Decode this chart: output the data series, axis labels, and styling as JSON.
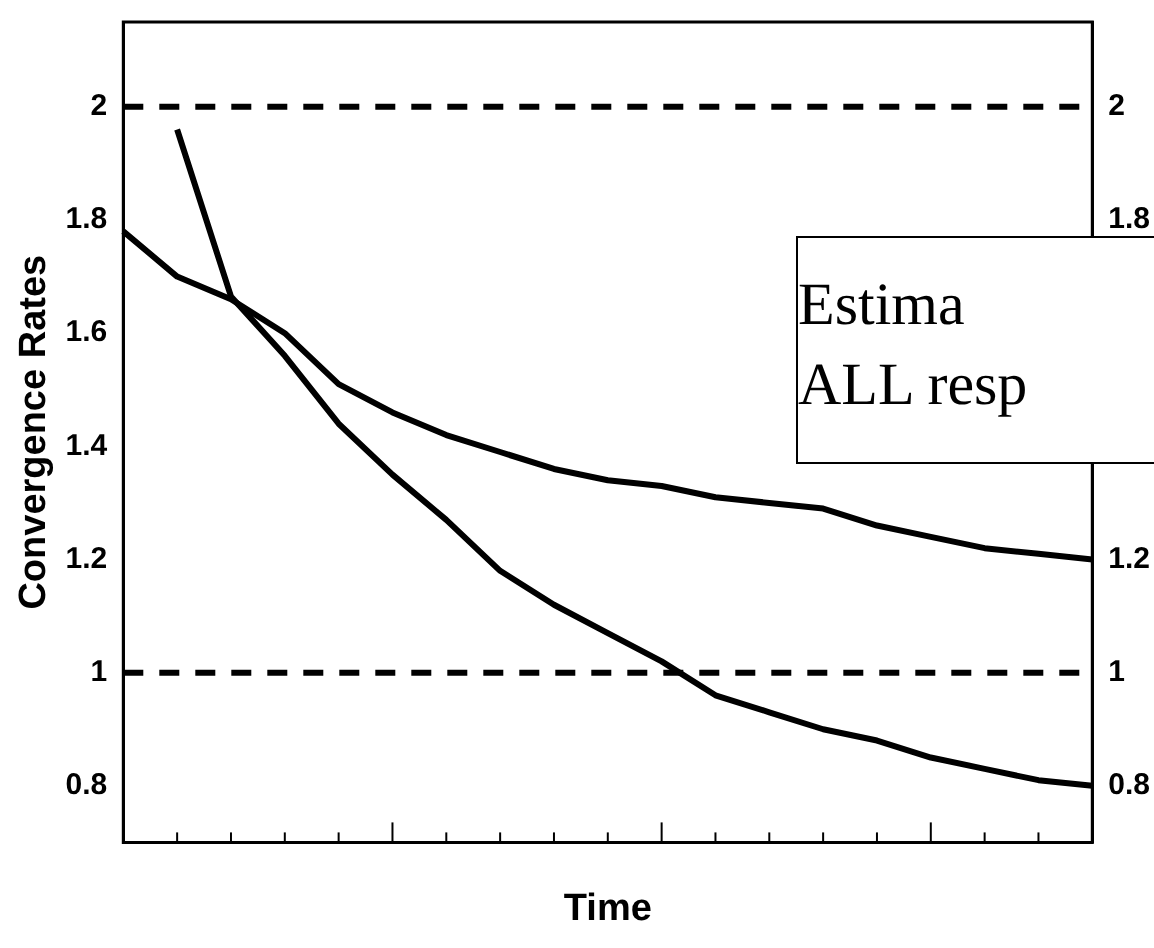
{
  "chart_data": {
    "type": "line",
    "xlabel": "Time",
    "ylabel": "Convergence Rates",
    "categories": [
      null,
      null,
      null,
      null,
      null,
      null,
      null,
      null,
      null,
      null,
      null,
      null,
      null,
      null,
      null,
      null,
      null,
      null,
      null
    ],
    "series": [
      {
        "color": "#000000",
        "values": [
          null,
          1.96,
          1.665,
          1.56,
          1.44,
          1.35,
          1.27,
          1.18,
          1.12,
          1.07,
          1.02,
          0.96,
          0.93,
          0.9,
          0.88,
          0.85,
          0.83,
          0.81,
          0.8
        ]
      },
      {
        "color": "#000000",
        "values": [
          1.78,
          1.7,
          1.66,
          1.6,
          1.51,
          1.46,
          1.42,
          1.39,
          1.36,
          1.34,
          1.33,
          1.31,
          1.3,
          1.29,
          1.26,
          1.24,
          1.22,
          1.21,
          1.2
        ]
      }
    ],
    "ylim": [
      0.7,
      2.15
    ],
    "yticks": [
      0.8,
      1,
      1.2,
      1.4,
      1.6,
      1.8,
      2
    ],
    "y2lim": [
      0.7,
      2.15
    ],
    "y2ticks": [
      0.8,
      1,
      1.2,
      1.8,
      2
    ],
    "tick_labels": "y",
    "grid": false,
    "legend": false,
    "marker": "none",
    "line_style": "solid",
    "ref_lines": [
      {
        "axis": "y",
        "value": 2,
        "line_style": "dashed",
        "color": "#000000"
      },
      {
        "axis": "y",
        "value": 1,
        "line_style": "dashed",
        "color": "#000000"
      }
    ],
    "annotations": [
      "Estima",
      "ALL resp"
    ]
  }
}
